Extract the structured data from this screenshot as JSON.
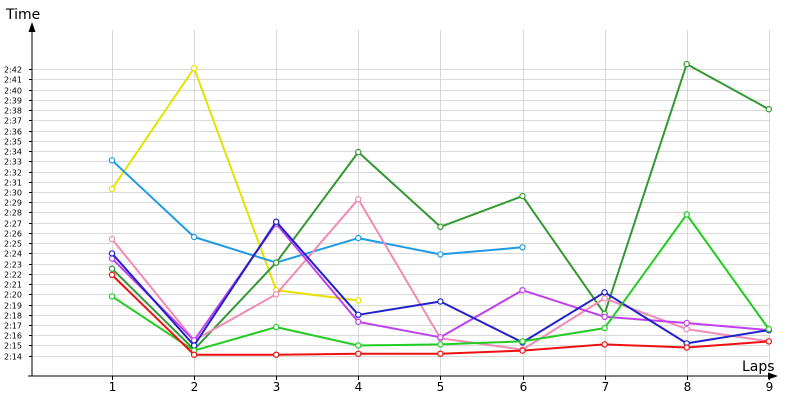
{
  "chart_data": {
    "type": "line",
    "title": "",
    "xlabel": "Laps",
    "ylabel": "Time",
    "x": [
      1,
      2,
      3,
      4,
      5,
      6,
      7,
      8,
      9
    ],
    "x_tick_labels": [
      "1",
      "2",
      "3",
      "4",
      "5",
      "6",
      "7",
      "8",
      "9"
    ],
    "y_unit": "seconds (m:ss)",
    "ylim": [
      133,
      162.5
    ],
    "y_ticks": [
      134,
      135,
      136,
      137,
      138,
      139,
      140,
      141,
      142,
      143,
      144,
      145,
      146,
      147,
      148,
      149,
      150,
      151,
      152,
      153,
      154,
      155,
      156,
      157,
      158,
      159,
      160,
      161,
      162
    ],
    "y_tick_labels": [
      "2:14",
      "2:15",
      "2:16",
      "2:17",
      "2:18",
      "2:19",
      "2:20",
      "2:21",
      "2:22",
      "2:23",
      "2:24",
      "2:25",
      "2:26",
      "2:27",
      "2:28",
      "2:29",
      "2:30",
      "2:31",
      "2:32",
      "2:33",
      "2:34",
      "2:35",
      "2:36",
      "2:37",
      "2:38",
      "2:39",
      "2:40",
      "2:41",
      "2:42"
    ],
    "grid": true,
    "legend": "none",
    "series": [
      {
        "color": "#e8e000",
        "values": [
          150.3,
          162.1,
          140.4,
          139.4,
          null,
          null,
          null,
          null,
          null
        ]
      },
      {
        "color": "#1e9be6",
        "values": [
          153.1,
          145.6,
          143.1,
          145.5,
          143.9,
          144.6,
          null,
          null,
          null
        ]
      },
      {
        "color": "#339933",
        "values": [
          142.5,
          134.6,
          143.1,
          153.9,
          146.6,
          149.6,
          138.1,
          162.5,
          158.1
        ]
      },
      {
        "color": "#f08cb4",
        "values": [
          145.4,
          135.5,
          140.0,
          149.3,
          135.7,
          134.6,
          139.6,
          136.6,
          135.4
        ]
      },
      {
        "color": "#c040f0",
        "values": [
          143.5,
          135.5,
          146.9,
          137.3,
          135.8,
          140.4,
          137.8,
          137.2,
          136.5
        ]
      },
      {
        "color": "#2222cc",
        "values": [
          144.0,
          135.0,
          147.1,
          138.0,
          139.3,
          135.3,
          140.2,
          135.2,
          136.5
        ]
      },
      {
        "color": "#22cc22",
        "values": [
          139.8,
          134.5,
          136.8,
          135.0,
          135.1,
          135.4,
          136.7,
          147.8,
          136.6
        ]
      },
      {
        "color": "#ee1111",
        "values": [
          141.9,
          134.1,
          134.1,
          134.2,
          134.2,
          134.5,
          135.1,
          134.8,
          135.4
        ]
      }
    ]
  }
}
